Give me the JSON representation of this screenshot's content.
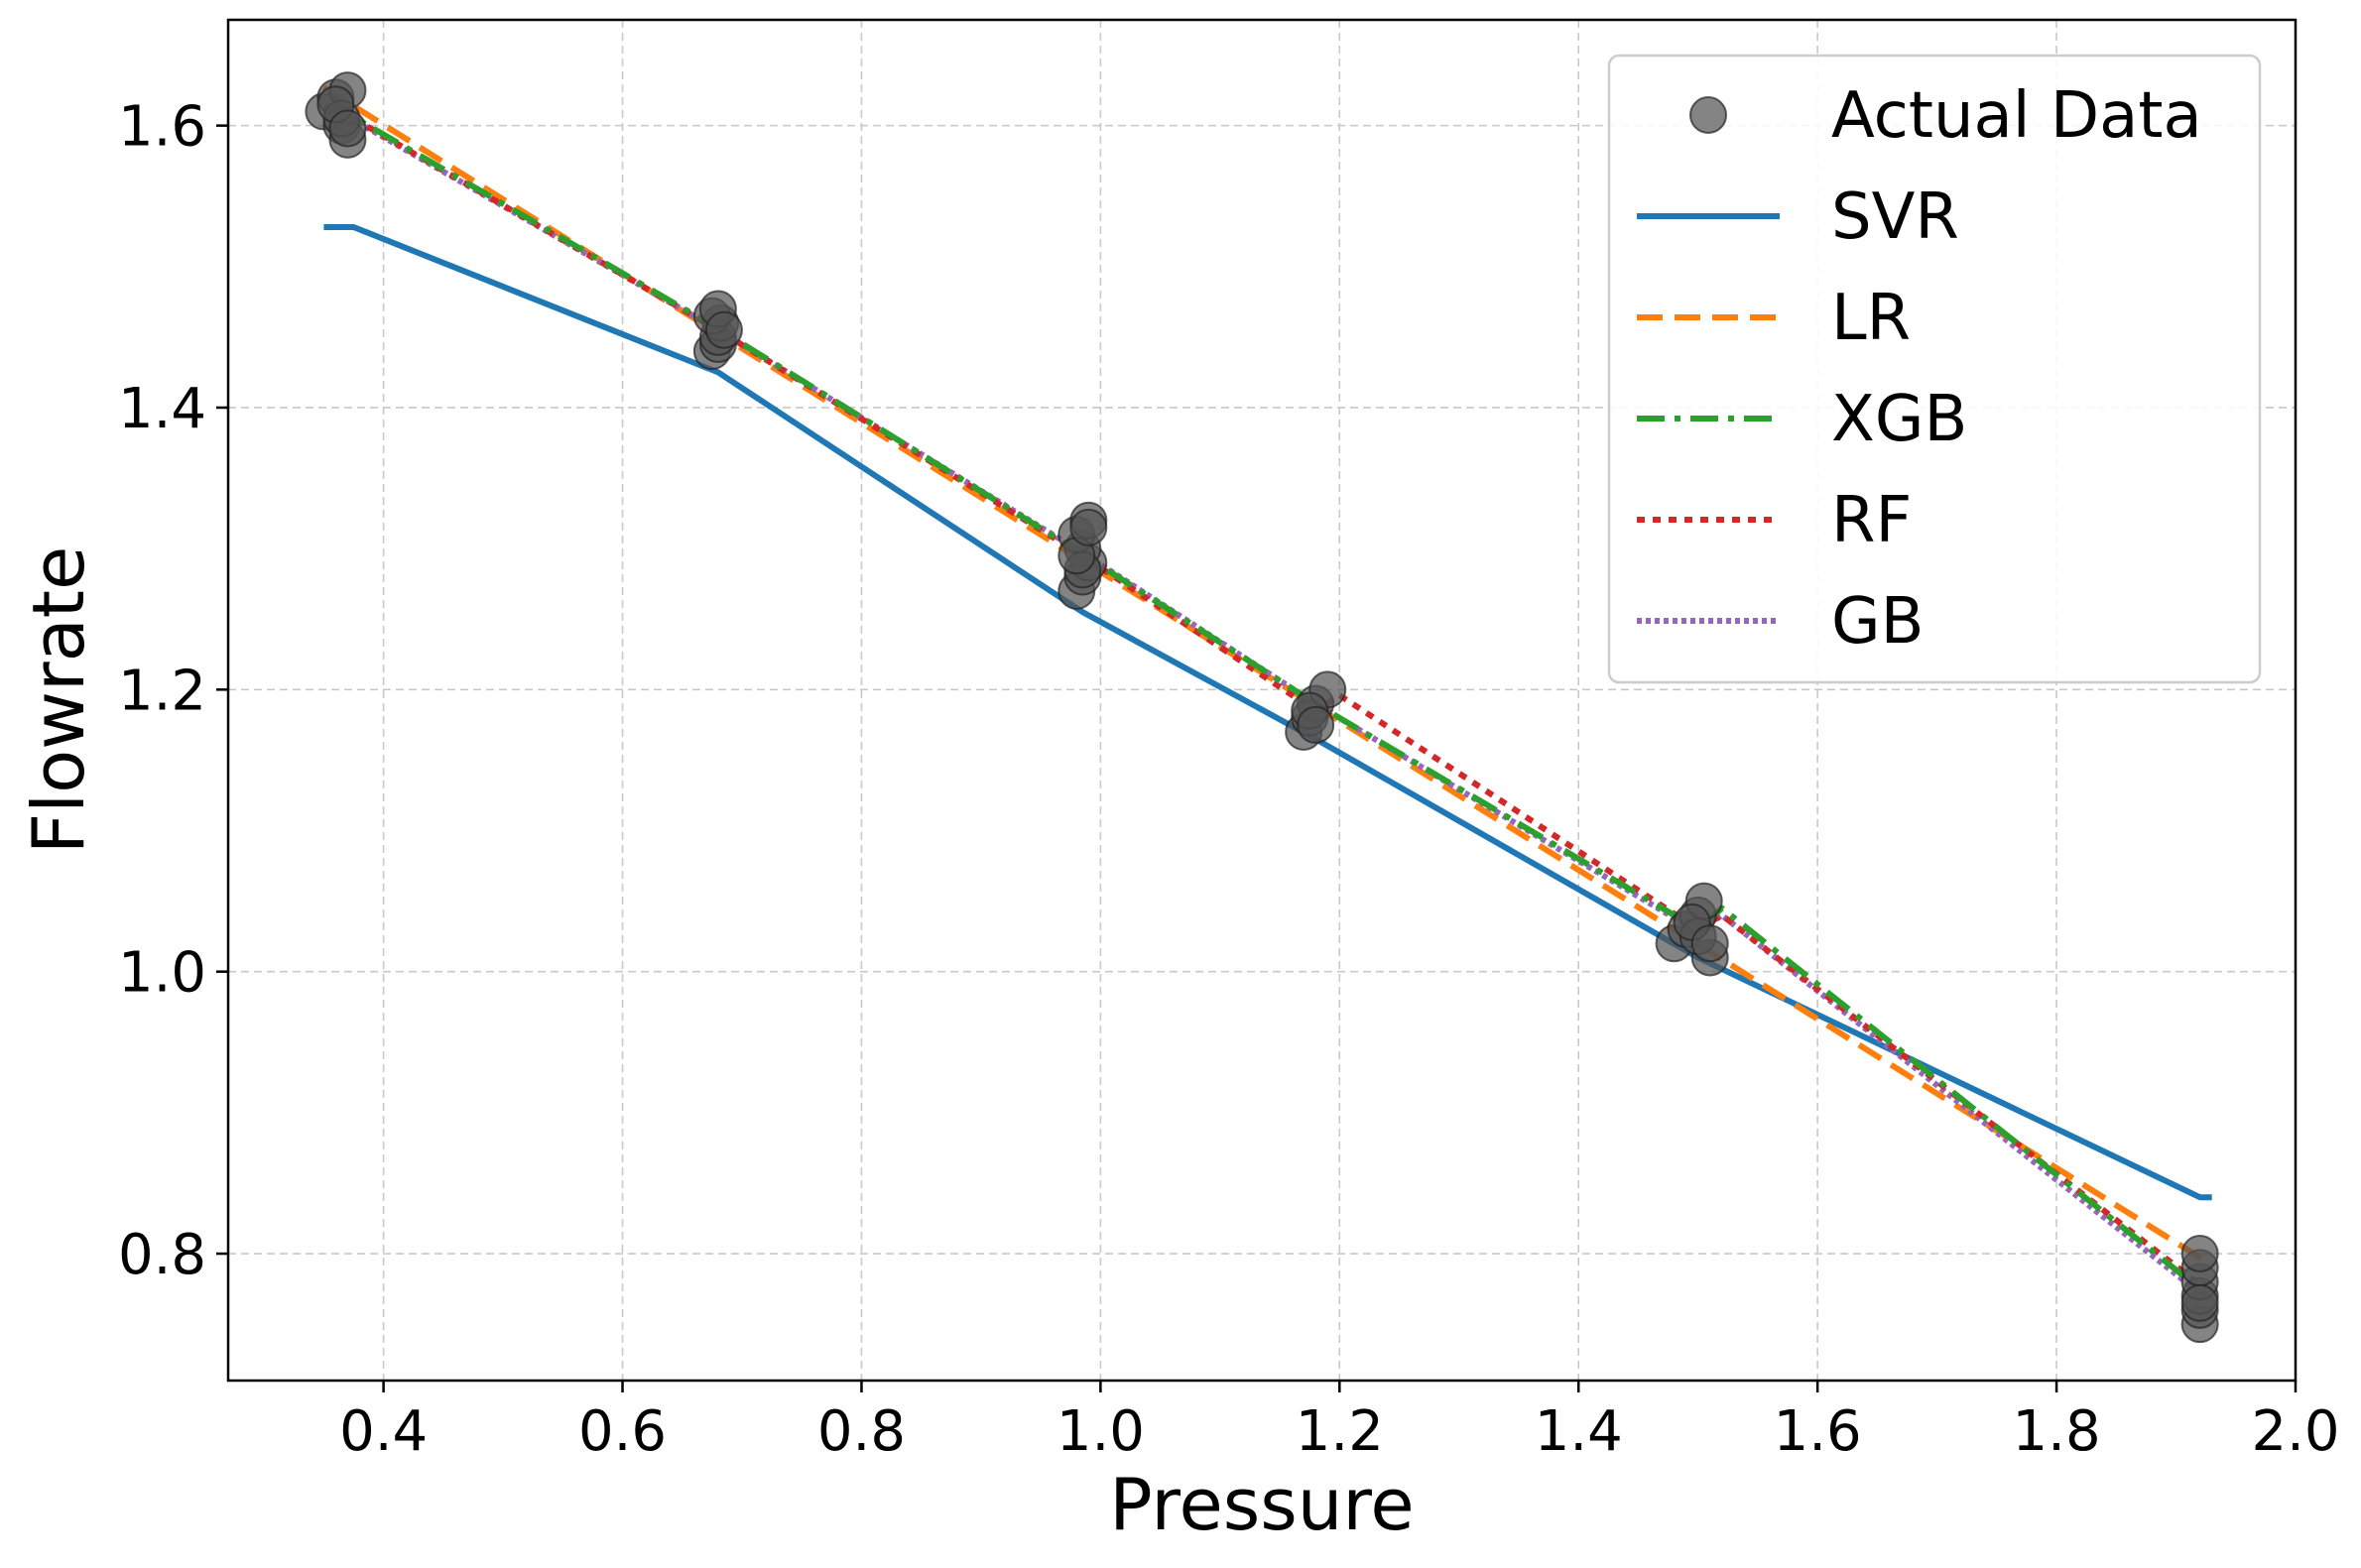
{
  "chart_data": {
    "type": "line",
    "xlabel": "Pressure",
    "ylabel": "Flowrate",
    "xlim": [
      0.27,
      2.0
    ],
    "ylim": [
      0.71,
      1.675
    ],
    "xticks": [
      0.4,
      0.6,
      0.8,
      1.0,
      1.2,
      1.4,
      1.6,
      1.8,
      2.0
    ],
    "xtick_labels": [
      "0.4",
      "0.6",
      "0.8",
      "1.0",
      "1.2",
      "1.4",
      "1.6",
      "1.8",
      "2.0"
    ],
    "yticks": [
      0.8,
      1.0,
      1.2,
      1.4,
      1.6
    ],
    "ytick_labels": [
      "0.8",
      "1.0",
      "1.2",
      "1.4",
      "1.6"
    ],
    "grid": true,
    "legend_position": "top-right",
    "scatter": {
      "name": "Actual Data",
      "color": "#555555",
      "x": [
        0.35,
        0.36,
        0.365,
        0.37,
        0.37,
        0.365,
        0.36,
        0.37,
        0.675,
        0.68,
        0.68,
        0.682,
        0.675,
        0.68,
        0.685,
        0.98,
        0.985,
        0.99,
        0.985,
        0.98,
        0.99,
        0.985,
        0.98,
        0.99,
        1.17,
        1.175,
        1.18,
        1.19,
        1.175,
        1.18,
        1.48,
        1.49,
        1.5,
        1.505,
        1.51,
        1.5,
        1.495,
        1.51,
        1.92,
        1.92,
        1.92,
        1.92,
        1.92,
        1.92,
        1.92
      ],
      "y": [
        1.61,
        1.62,
        1.6,
        1.59,
        1.625,
        1.605,
        1.615,
        1.598,
        1.44,
        1.445,
        1.45,
        1.46,
        1.465,
        1.47,
        1.455,
        1.27,
        1.28,
        1.29,
        1.3,
        1.31,
        1.32,
        1.285,
        1.295,
        1.315,
        1.17,
        1.18,
        1.19,
        1.2,
        1.185,
        1.175,
        1.02,
        1.03,
        1.04,
        1.05,
        1.01,
        1.025,
        1.035,
        1.02,
        0.75,
        0.76,
        0.77,
        0.78,
        0.79,
        0.8,
        0.765
      ]
    },
    "x": [
      0.35,
      0.375,
      0.68,
      0.985,
      1.18,
      1.5,
      1.92
    ],
    "series": [
      {
        "name": "SVR",
        "color": "#1f77b4",
        "dash": "solid",
        "x": [
          0.35,
          0.375,
          0.68,
          0.985,
          1.18,
          1.5,
          1.92,
          1.93
        ],
        "y": [
          1.528,
          1.528,
          1.425,
          1.255,
          1.165,
          1.01,
          0.84,
          0.84
        ]
      },
      {
        "name": "LR",
        "color": "#ff7f0e",
        "dash": "dashed",
        "x": [
          0.35,
          1.93
        ],
        "y": [
          1.627,
          0.792
        ]
      },
      {
        "name": "XGB",
        "color": "#2ca02c",
        "dash": "dashdot",
        "x": [
          0.35,
          0.375,
          0.68,
          0.985,
          1.18,
          1.5,
          1.52,
          1.92,
          1.925
        ],
        "y": [
          1.61,
          1.606,
          1.456,
          1.296,
          1.19,
          1.03,
          1.045,
          0.775,
          0.775
        ]
      },
      {
        "name": "RF",
        "color": "#d62728",
        "dash": "dotted",
        "x": [
          0.35,
          0.375,
          0.68,
          0.985,
          1.18,
          1.2,
          1.5,
          1.52,
          1.92,
          1.925
        ],
        "y": [
          1.612,
          1.605,
          1.455,
          1.295,
          1.185,
          1.196,
          1.03,
          1.04,
          0.778,
          0.778
        ]
      },
      {
        "name": "GB",
        "color": "#9467bd",
        "dash": "densely-dotted",
        "x": [
          0.35,
          0.375,
          0.68,
          0.985,
          1.18,
          1.5,
          1.52,
          1.92,
          1.925
        ],
        "y": [
          1.61,
          1.604,
          1.455,
          1.297,
          1.19,
          1.028,
          1.04,
          0.772,
          0.772
        ]
      }
    ]
  }
}
